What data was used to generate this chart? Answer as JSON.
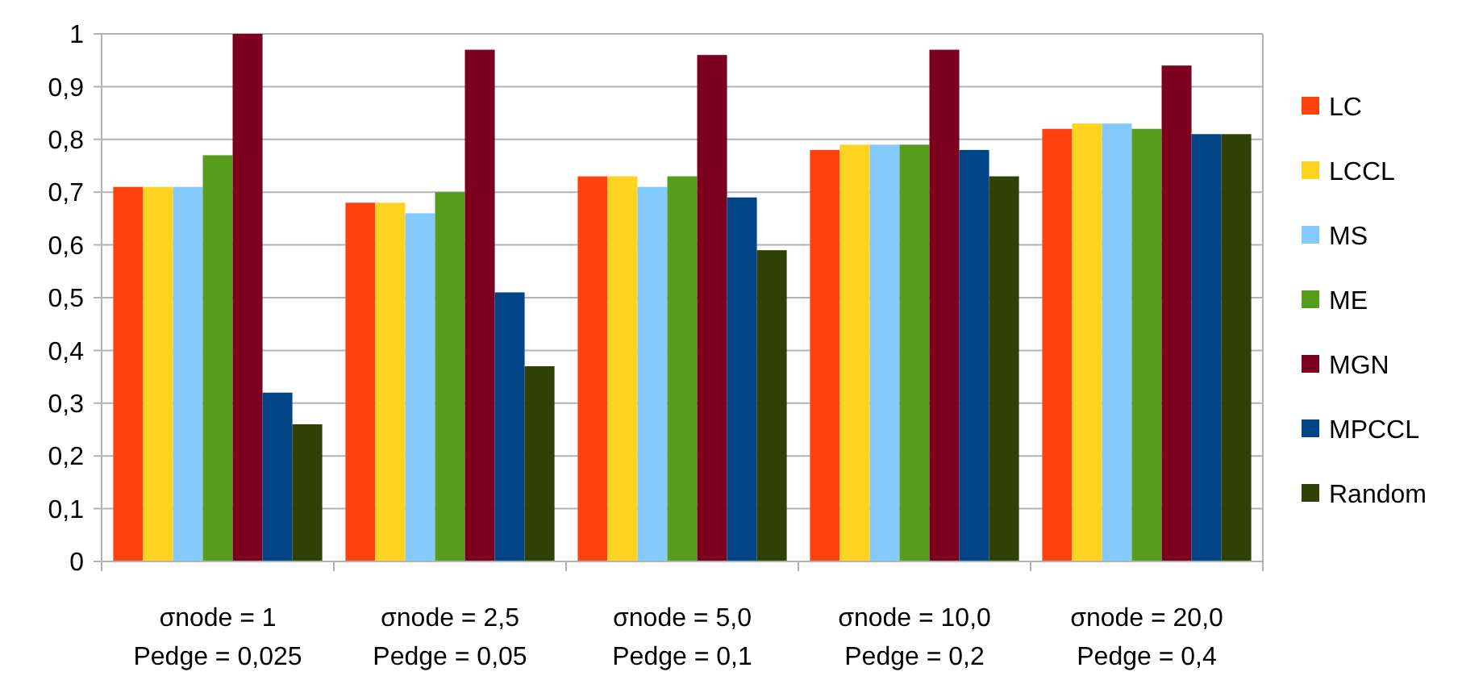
{
  "chart_data": {
    "type": "bar",
    "categories": [
      "σnode = 1\nPedge = 0,025",
      "σnode = 2,5\nPedge = 0,05",
      "σnode = 5,0\nPedge = 0,1",
      "σnode = 10,0\nPedge = 0,2",
      "σnode = 20,0\nPedge = 0,4"
    ],
    "series": [
      {
        "name": "LC",
        "color": "#ff420e",
        "values": [
          0.71,
          0.68,
          0.73,
          0.78,
          0.82
        ]
      },
      {
        "name": "LCCL",
        "color": "#ffd320",
        "values": [
          0.71,
          0.68,
          0.73,
          0.79,
          0.83
        ]
      },
      {
        "name": "MS",
        "color": "#83caff",
        "values": [
          0.71,
          0.66,
          0.71,
          0.79,
          0.83
        ]
      },
      {
        "name": "ME",
        "color": "#579d1c",
        "values": [
          0.77,
          0.7,
          0.73,
          0.79,
          0.82
        ]
      },
      {
        "name": "MGN",
        "color": "#7e0021",
        "values": [
          1.0,
          0.97,
          0.96,
          0.97,
          0.94
        ]
      },
      {
        "name": "MPCCL",
        "color": "#004586",
        "values": [
          0.32,
          0.51,
          0.69,
          0.78,
          0.81
        ]
      },
      {
        "name": "Random",
        "color": "#314004",
        "values": [
          0.26,
          0.37,
          0.59,
          0.73,
          0.81
        ]
      }
    ],
    "ylim": [
      0,
      1
    ],
    "yticks": [
      0,
      {
        "value": 0.1,
        "label": "0,1"
      },
      {
        "value": 0.2,
        "label": "0,2"
      },
      {
        "value": 0.3,
        "label": "0,3"
      },
      {
        "value": 0.4,
        "label": "0,4"
      },
      {
        "value": 0.5,
        "label": "0,5"
      },
      {
        "value": 0.6,
        "label": "0,6"
      },
      {
        "value": 0.7,
        "label": "0,7"
      },
      {
        "value": 0.8,
        "label": "0,8"
      },
      {
        "value": 0.9,
        "label": "0,9"
      },
      1
    ],
    "grid": "y",
    "legend": "right"
  }
}
